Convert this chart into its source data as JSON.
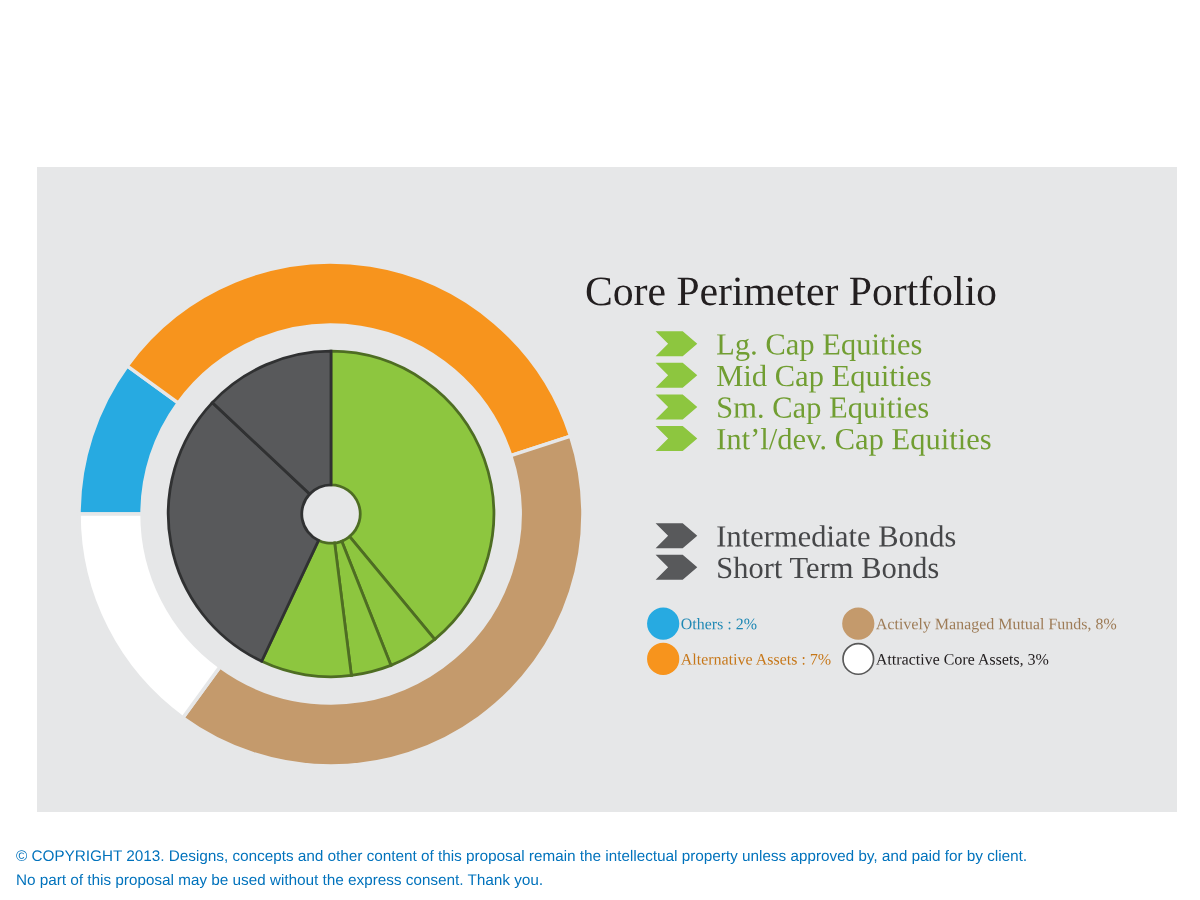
{
  "chart_data": {
    "type": "donut",
    "title": "Core Perimeter Portfolio",
    "categories": [
      "Lg. Cap Equities",
      "Mid Cap Equities",
      "Sm. Cap Equities",
      "Int’l/dev. Cap Equities",
      "Intermediate Bonds",
      "Short Term Bonds",
      "Others : 2%",
      "Alternative Assets : 7%",
      "Actively Managed Mutual Funds, 8%",
      "Attractive Core Assets, 3%"
    ],
    "series": [
      {
        "values": [
          39,
          5,
          4,
          9,
          30,
          13,
          null,
          null,
          null,
          null
        ],
        "colors": [
          "#8dc63f",
          "#8dc63f",
          "#8dc63f",
          "#8dc63f",
          "#58595b",
          "#58595b",
          null,
          null,
          null,
          null
        ]
      },
      {
        "values": [
          null,
          null,
          null,
          null,
          null,
          null,
          2,
          7,
          8,
          3
        ],
        "colors": [
          null,
          null,
          null,
          null,
          null,
          null,
          "#27aae1",
          "#f7941d",
          "#c49a6c",
          "#ffffff"
        ]
      }
    ],
    "legend": "right",
    "annotations": [
      "© COPYRIGHT 2013. Designs, concepts and other content of this proposal remain the intellectual property unless approved by, and paid for by client.",
      "No part of this proposal may be used without the express consent. Thank you."
    ]
  }
}
